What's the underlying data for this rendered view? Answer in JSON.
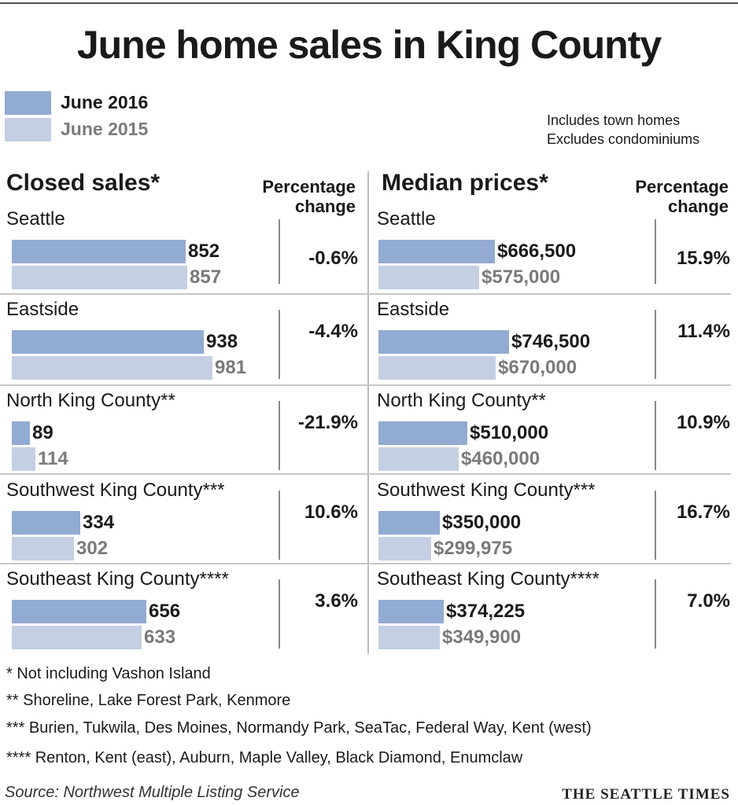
{
  "title": "June home sales in King County",
  "legend": [
    {
      "label": "June 2016",
      "color": "#91abd2",
      "text_color": "#1a1a1a"
    },
    {
      "label": "June 2015",
      "color": "#c4cfe3",
      "text_color": "#7a7a7a"
    }
  ],
  "notes": [
    "Includes town homes",
    "Excludes condominiums"
  ],
  "pct_header": [
    "Percentage",
    "change"
  ],
  "footnotes": [
    "* Not including Vashon Island",
    "**  Shoreline, Lake Forest Park, Kenmore",
    "*** Burien, Tukwila, Des Moines, Normandy Park, SeaTac, Federal Way, Kent (west)",
    "**** Renton, Kent (east), Auburn, Maple Valley, Black Diamond, Enumclaw"
  ],
  "source": "Source: Northwest Multiple Listing Service",
  "brand": "THE SEATTLE TIMES",
  "chart_data": [
    {
      "type": "bar",
      "title": "Closed sales*",
      "categories": [
        "Seattle",
        "Eastside",
        "North King County**",
        "Southwest King County***",
        "Southeast King County****"
      ],
      "series": [
        {
          "name": "June 2016",
          "values": [
            852,
            938,
            89,
            334,
            656
          ],
          "labels": [
            "852",
            "938",
            "89",
            "334",
            "656"
          ]
        },
        {
          "name": "June 2015",
          "values": [
            857,
            981,
            114,
            302,
            633
          ],
          "labels": [
            "857",
            "981",
            "114",
            "302",
            "633"
          ]
        }
      ],
      "pct_change": [
        "-0.6%",
        "-4.4%",
        "-21.9%",
        "10.6%",
        "3.6%"
      ],
      "orientation": "horizontal"
    },
    {
      "type": "bar",
      "title": "Median prices*",
      "categories": [
        "Seattle",
        "Eastside",
        "North King County**",
        "Southwest King County***",
        "Southeast King County****"
      ],
      "series": [
        {
          "name": "June 2016",
          "values": [
            666500,
            746500,
            510000,
            350000,
            374225
          ],
          "labels": [
            "$666,500",
            "$746,500",
            "$510,000",
            "$350,000",
            "$374,225"
          ]
        },
        {
          "name": "June 2015",
          "values": [
            575000,
            670000,
            460000,
            299975,
            349900
          ],
          "labels": [
            "$575,000",
            "$670,000",
            "$460,000",
            "$299,975",
            "$349,900"
          ]
        }
      ],
      "pct_change": [
        "15.9%",
        "11.4%",
        "10.9%",
        "16.7%",
        "7.0%"
      ],
      "orientation": "horizontal"
    }
  ]
}
